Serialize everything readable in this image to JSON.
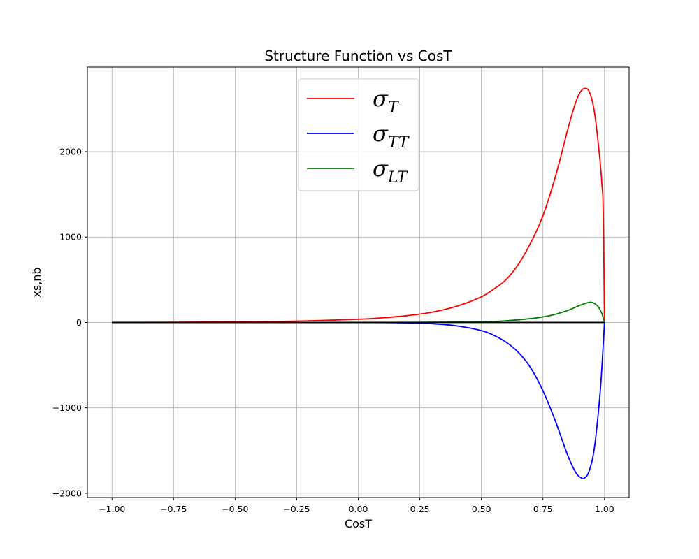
{
  "chart_data": {
    "type": "line",
    "title": "Structure Function vs CosT",
    "xlabel": "CosT",
    "ylabel": "xs,nb",
    "xlim": [
      -1.1,
      1.1
    ],
    "ylim": [
      -2050,
      2990
    ],
    "xticks": [
      -1.0,
      -0.75,
      -0.5,
      -0.25,
      0.0,
      0.25,
      0.5,
      0.75,
      1.0
    ],
    "xtick_labels": [
      "−1.00",
      "−0.75",
      "−0.50",
      "−0.25",
      "0.00",
      "0.25",
      "0.50",
      "0.75",
      "1.00"
    ],
    "yticks": [
      -2000,
      -1000,
      0,
      1000,
      2000
    ],
    "ytick_labels": [
      "−2000",
      "−1000",
      "0",
      "1000",
      "2000"
    ],
    "grid": true,
    "legend_position": "top-center",
    "series": [
      {
        "name": "σ_T",
        "legend_base": "σ",
        "legend_sub": "T",
        "color": "#ff0000",
        "points": [
          [
            -1.0,
            0
          ],
          [
            -0.75,
            2
          ],
          [
            -0.5,
            7
          ],
          [
            -0.25,
            16
          ],
          [
            0.0,
            38
          ],
          [
            0.1,
            55
          ],
          [
            0.2,
            80
          ],
          [
            0.3,
            120
          ],
          [
            0.4,
            190
          ],
          [
            0.5,
            300
          ],
          [
            0.55,
            390
          ],
          [
            0.6,
            500
          ],
          [
            0.65,
            680
          ],
          [
            0.7,
            930
          ],
          [
            0.75,
            1250
          ],
          [
            0.8,
            1700
          ],
          [
            0.85,
            2250
          ],
          [
            0.88,
            2550
          ],
          [
            0.9,
            2690
          ],
          [
            0.92,
            2740
          ],
          [
            0.94,
            2690
          ],
          [
            0.96,
            2450
          ],
          [
            0.98,
            1950
          ],
          [
            0.99,
            1600
          ],
          [
            0.995,
            1300
          ],
          [
            1.0,
            0
          ]
        ]
      },
      {
        "name": "σ_TT",
        "legend_base": "σ",
        "legend_sub": "TT",
        "color": "#0000ff",
        "points": [
          [
            -1.0,
            0
          ],
          [
            -0.5,
            0
          ],
          [
            0.0,
            0
          ],
          [
            0.2,
            -5
          ],
          [
            0.3,
            -15
          ],
          [
            0.4,
            -40
          ],
          [
            0.5,
            -95
          ],
          [
            0.55,
            -150
          ],
          [
            0.6,
            -230
          ],
          [
            0.65,
            -350
          ],
          [
            0.7,
            -530
          ],
          [
            0.75,
            -800
          ],
          [
            0.8,
            -1150
          ],
          [
            0.85,
            -1550
          ],
          [
            0.88,
            -1740
          ],
          [
            0.9,
            -1810
          ],
          [
            0.92,
            -1820
          ],
          [
            0.94,
            -1720
          ],
          [
            0.96,
            -1450
          ],
          [
            0.98,
            -900
          ],
          [
            0.99,
            -500
          ],
          [
            1.0,
            0
          ]
        ]
      },
      {
        "name": "σ_LT",
        "legend_base": "σ",
        "legend_sub": "LT",
        "color": "#008000",
        "points": [
          [
            -1.0,
            0
          ],
          [
            0.0,
            0
          ],
          [
            0.3,
            2
          ],
          [
            0.5,
            8
          ],
          [
            0.6,
            20
          ],
          [
            0.7,
            45
          ],
          [
            0.75,
            65
          ],
          [
            0.8,
            95
          ],
          [
            0.85,
            140
          ],
          [
            0.9,
            200
          ],
          [
            0.93,
            230
          ],
          [
            0.95,
            235
          ],
          [
            0.97,
            200
          ],
          [
            0.98,
            160
          ],
          [
            0.99,
            100
          ],
          [
            1.0,
            0
          ]
        ]
      },
      {
        "name": "",
        "color": "#000000",
        "legend": false,
        "points": [
          [
            -1.0,
            0
          ],
          [
            1.0,
            0
          ]
        ]
      }
    ]
  }
}
